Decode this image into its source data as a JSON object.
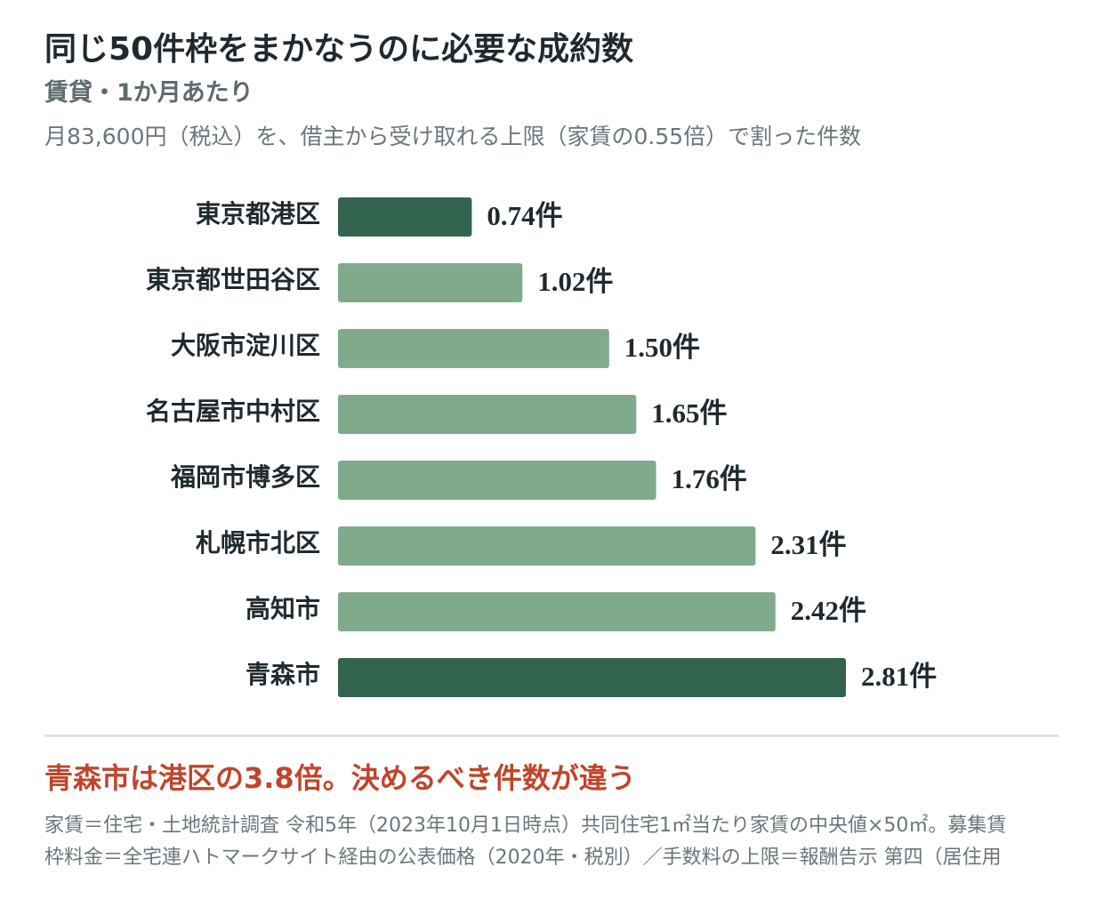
{
  "header": {
    "title": "同じ50件枠をまかなうのに必要な成約数",
    "subtitle": "賃貸・1か月あたり",
    "description": "月83,600円（税込）を、借主から受け取れる上限（家賃の0.55倍）で割った件数"
  },
  "chart_data": {
    "type": "bar",
    "orientation": "horizontal",
    "categories": [
      "東京都港区",
      "東京都世田谷区",
      "大阪市淀川区",
      "名古屋市中村区",
      "福岡市博多区",
      "札幌市北区",
      "高知市",
      "青森市"
    ],
    "values": [
      0.74,
      1.02,
      1.5,
      1.65,
      1.76,
      2.31,
      2.42,
      2.81
    ],
    "value_labels": [
      "0.74件",
      "1.02件",
      "1.50件",
      "1.65件",
      "1.76件",
      "2.31件",
      "2.42件",
      "2.81件"
    ],
    "highlight": [
      0,
      7
    ],
    "colors": {
      "bar": "#7faa8c",
      "bar_highlight": "#336450",
      "label": "#1f2a30",
      "label_accent": "#c0452a"
    },
    "xlim": [
      0,
      2.81
    ],
    "grid": false
  },
  "takeaway": "青森市は港区の3.8倍。決めるべき件数が違う",
  "notes": [
    "家賃＝住宅・土地統計調査 令和5年（2023年10月1日時点）共同住宅1㎡当たり家賃の中央値×50㎡。募集賃",
    "枠料金＝全宅連ハトマークサイト経由の公表価格（2020年・税別）／手数料の上限＝報酬告示 第四（居住用"
  ]
}
